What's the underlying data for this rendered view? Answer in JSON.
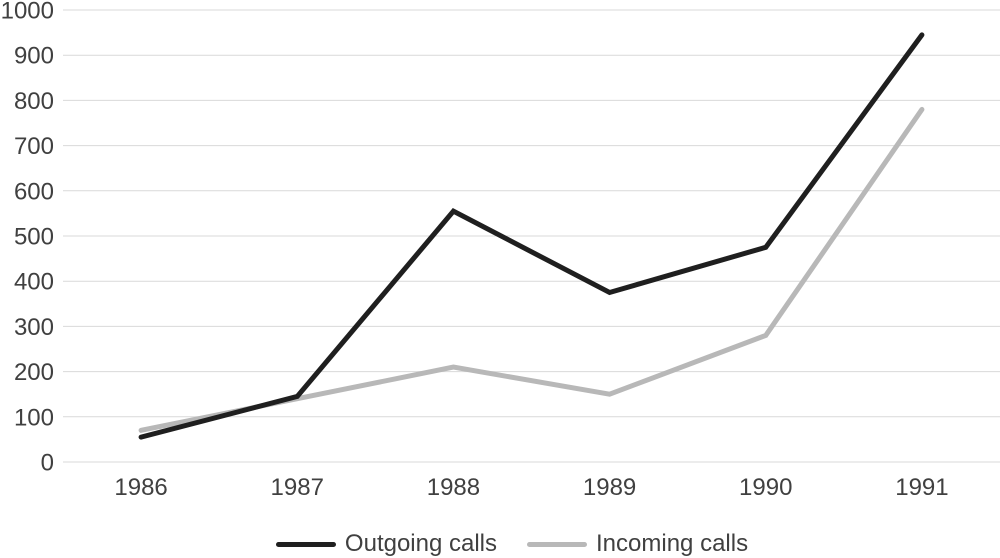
{
  "chart_data": {
    "type": "line",
    "title": "",
    "xlabel": "",
    "ylabel": "",
    "categories": [
      "1986",
      "1987",
      "1988",
      "1989",
      "1990",
      "1991"
    ],
    "series": [
      {
        "name": "Outgoing calls",
        "color": "#1f1f1f",
        "values": [
          55,
          145,
          555,
          375,
          475,
          945
        ]
      },
      {
        "name": "Incoming calls",
        "color": "#b8b8b8",
        "values": [
          70,
          140,
          210,
          150,
          280,
          780
        ]
      }
    ],
    "ylim": [
      0,
      1000
    ],
    "yticks": [
      0,
      100,
      200,
      300,
      400,
      500,
      600,
      700,
      800,
      900,
      1000
    ],
    "grid": "horizontal",
    "legend_position": "bottom"
  },
  "styles": {
    "background": "#ffffff",
    "grid_color": "#d9d9d9",
    "tick_label_color": "#404040",
    "legend_label_color": "#404040"
  }
}
